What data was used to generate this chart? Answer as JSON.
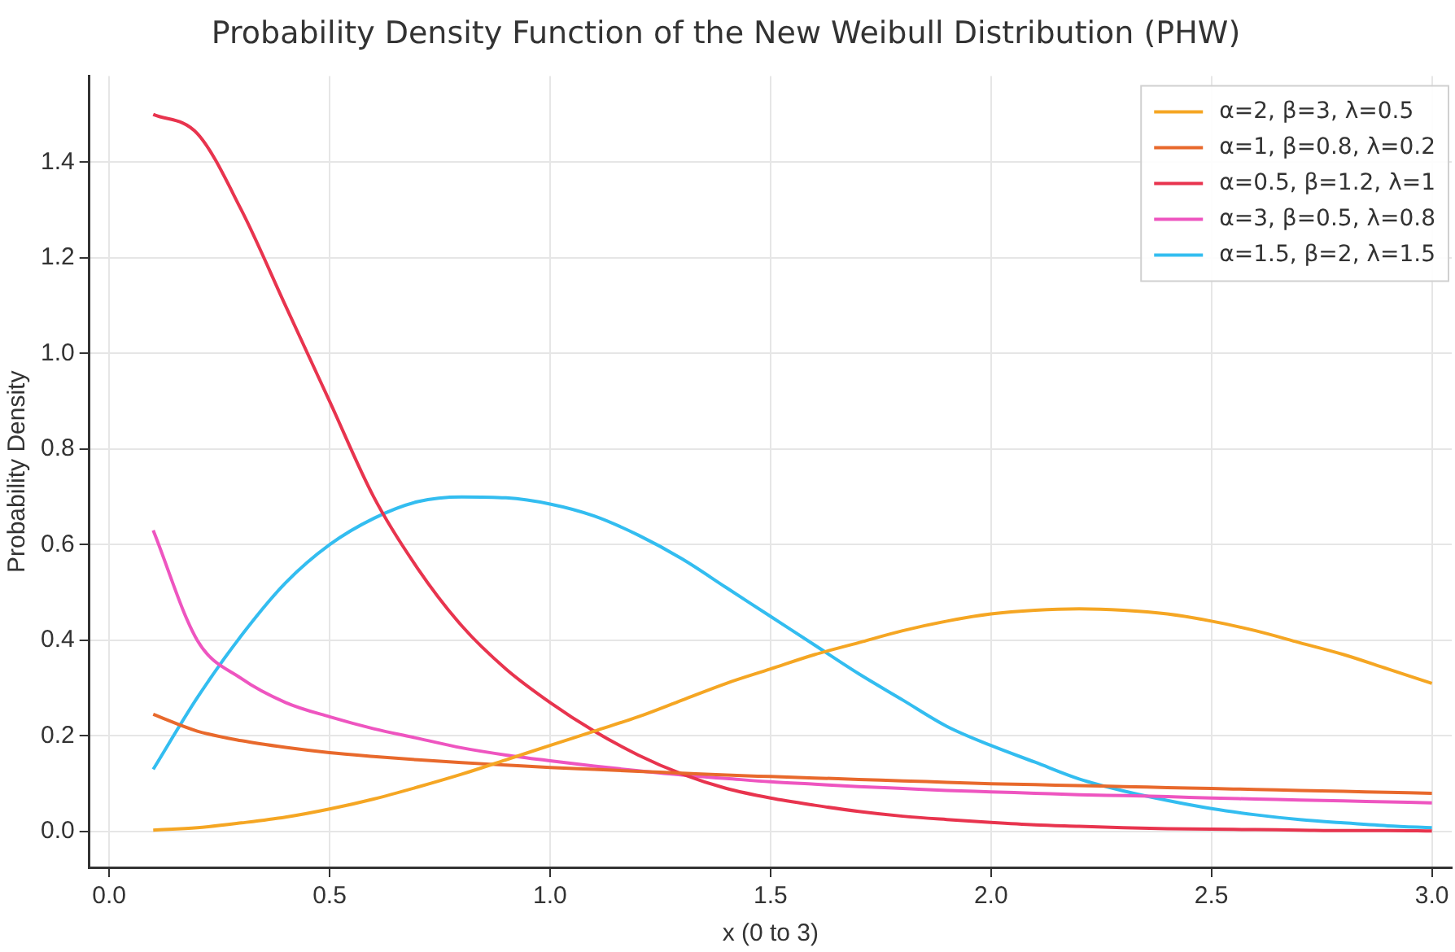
{
  "chart_data": {
    "type": "line",
    "title": "Probability Density Function of the New Weibull Distribution (PHW)",
    "xlabel": "x (0 to 3)",
    "ylabel": "Probability Density",
    "x": [
      0.1,
      0.2,
      0.3,
      0.4,
      0.5,
      0.6,
      0.7,
      0.8,
      0.9,
      1.0,
      1.1,
      1.2,
      1.3,
      1.4,
      1.5,
      1.6,
      1.7,
      1.8,
      1.9,
      2.0,
      2.1,
      2.2,
      2.3,
      2.4,
      2.5,
      2.6,
      2.7,
      2.8,
      2.9,
      3.0
    ],
    "series": [
      {
        "name": "α=2, β=3, λ=0.5",
        "color": "#f5a623",
        "values": [
          0.003,
          0.008,
          0.018,
          0.03,
          0.047,
          0.068,
          0.093,
          0.12,
          0.15,
          0.18,
          0.21,
          0.24,
          0.275,
          0.31,
          0.34,
          0.37,
          0.395,
          0.42,
          0.44,
          0.455,
          0.463,
          0.466,
          0.463,
          0.455,
          0.44,
          0.42,
          0.395,
          0.37,
          0.34,
          0.31
        ]
      },
      {
        "name": "α=1, β=0.8, λ=0.2",
        "color": "#e8692c",
        "values": [
          0.245,
          0.21,
          0.19,
          0.176,
          0.165,
          0.157,
          0.15,
          0.144,
          0.139,
          0.134,
          0.13,
          0.126,
          0.122,
          0.118,
          0.115,
          0.112,
          0.109,
          0.106,
          0.103,
          0.1,
          0.098,
          0.096,
          0.094,
          0.092,
          0.09,
          0.088,
          0.086,
          0.084,
          0.082,
          0.08
        ]
      },
      {
        "name": "α=0.5, β=1.2, λ=1",
        "color": "#e8344e",
        "values": [
          1.5,
          1.46,
          1.3,
          1.1,
          0.9,
          0.7,
          0.55,
          0.43,
          0.34,
          0.27,
          0.21,
          0.16,
          0.12,
          0.09,
          0.07,
          0.055,
          0.042,
          0.032,
          0.025,
          0.019,
          0.014,
          0.011,
          0.008,
          0.006,
          0.005,
          0.004,
          0.003,
          0.002,
          0.002,
          0.001
        ]
      },
      {
        "name": "α=3, β=0.5, λ=0.8",
        "color": "#ee55c0",
        "values": [
          0.63,
          0.4,
          0.32,
          0.27,
          0.24,
          0.215,
          0.195,
          0.175,
          0.16,
          0.148,
          0.137,
          0.127,
          0.118,
          0.111,
          0.104,
          0.099,
          0.094,
          0.09,
          0.086,
          0.083,
          0.08,
          0.077,
          0.075,
          0.073,
          0.07,
          0.068,
          0.066,
          0.064,
          0.062,
          0.06
        ]
      },
      {
        "name": "α=1.5, β=2, λ=1.5",
        "color": "#33bdf0",
        "values": [
          0.13,
          0.28,
          0.41,
          0.52,
          0.6,
          0.655,
          0.69,
          0.7,
          0.698,
          0.685,
          0.66,
          0.62,
          0.57,
          0.51,
          0.45,
          0.39,
          0.33,
          0.275,
          0.22,
          0.18,
          0.145,
          0.11,
          0.085,
          0.065,
          0.048,
          0.035,
          0.025,
          0.018,
          0.012,
          0.008
        ]
      }
    ],
    "xlim": [
      -0.045,
      3.045
    ],
    "xticks": [
      {
        "value": 0,
        "label": "0.0"
      },
      0.5,
      {
        "value": 1,
        "label": "1.0"
      },
      1.5,
      {
        "value": 2,
        "label": "2.0"
      },
      2.5,
      {
        "value": 3,
        "label": "3.0"
      }
    ],
    "ylim": [
      -0.075,
      1.58
    ],
    "yticks": [
      {
        "value": 0,
        "label": "0.0"
      },
      0.2,
      0.4,
      0.6,
      0.8,
      {
        "value": 1,
        "label": "1.0"
      },
      1.2,
      1.4
    ],
    "grid": true,
    "legend": "top right",
    "marker": "none",
    "line_style": "solid"
  }
}
